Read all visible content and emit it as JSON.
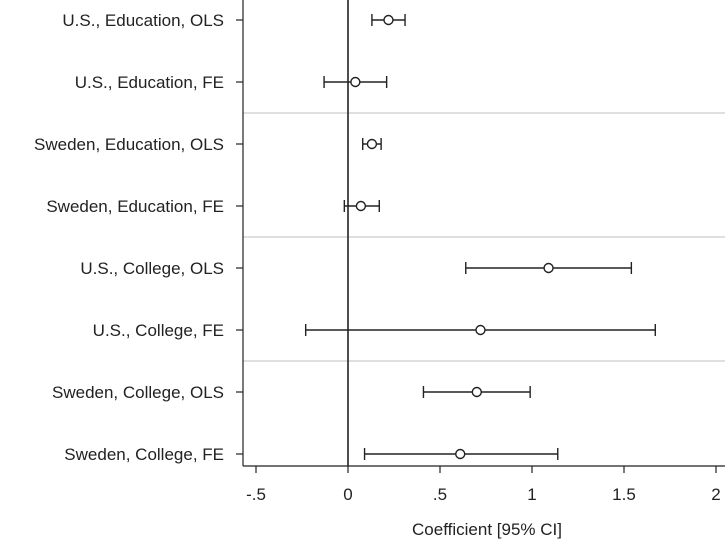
{
  "chart_data": {
    "type": "scatter",
    "xlabel": "Coefficient [95% CI]",
    "xlim": [
      -0.55,
      2.05
    ],
    "xticks": [
      -0.5,
      0,
      0.5,
      1,
      1.5,
      2
    ],
    "xtick_labels": [
      "-.5",
      "0",
      ".5",
      "1",
      "1.5",
      "2"
    ],
    "reference_line_x": 0,
    "categories": [
      "U.S., Education, OLS",
      "U.S., Education, FE",
      "Sweden, Education, OLS",
      "Sweden, Education, FE",
      "U.S., College, OLS",
      "U.S., College, FE",
      "Sweden, College, OLS",
      "Sweden, College, FE"
    ],
    "estimates": [
      0.22,
      0.04,
      0.13,
      0.07,
      1.09,
      0.72,
      0.7,
      0.61
    ],
    "ci_lower": [
      0.13,
      -0.13,
      0.08,
      -0.02,
      0.64,
      -0.23,
      0.41,
      0.09
    ],
    "ci_upper": [
      0.31,
      0.21,
      0.18,
      0.17,
      1.54,
      1.67,
      0.99,
      1.14
    ],
    "group_separators_after": [
      2,
      4,
      6
    ],
    "grid": false,
    "colors": {
      "marker": "#222222",
      "axis": "#222222",
      "separator": "#cccccc"
    }
  }
}
